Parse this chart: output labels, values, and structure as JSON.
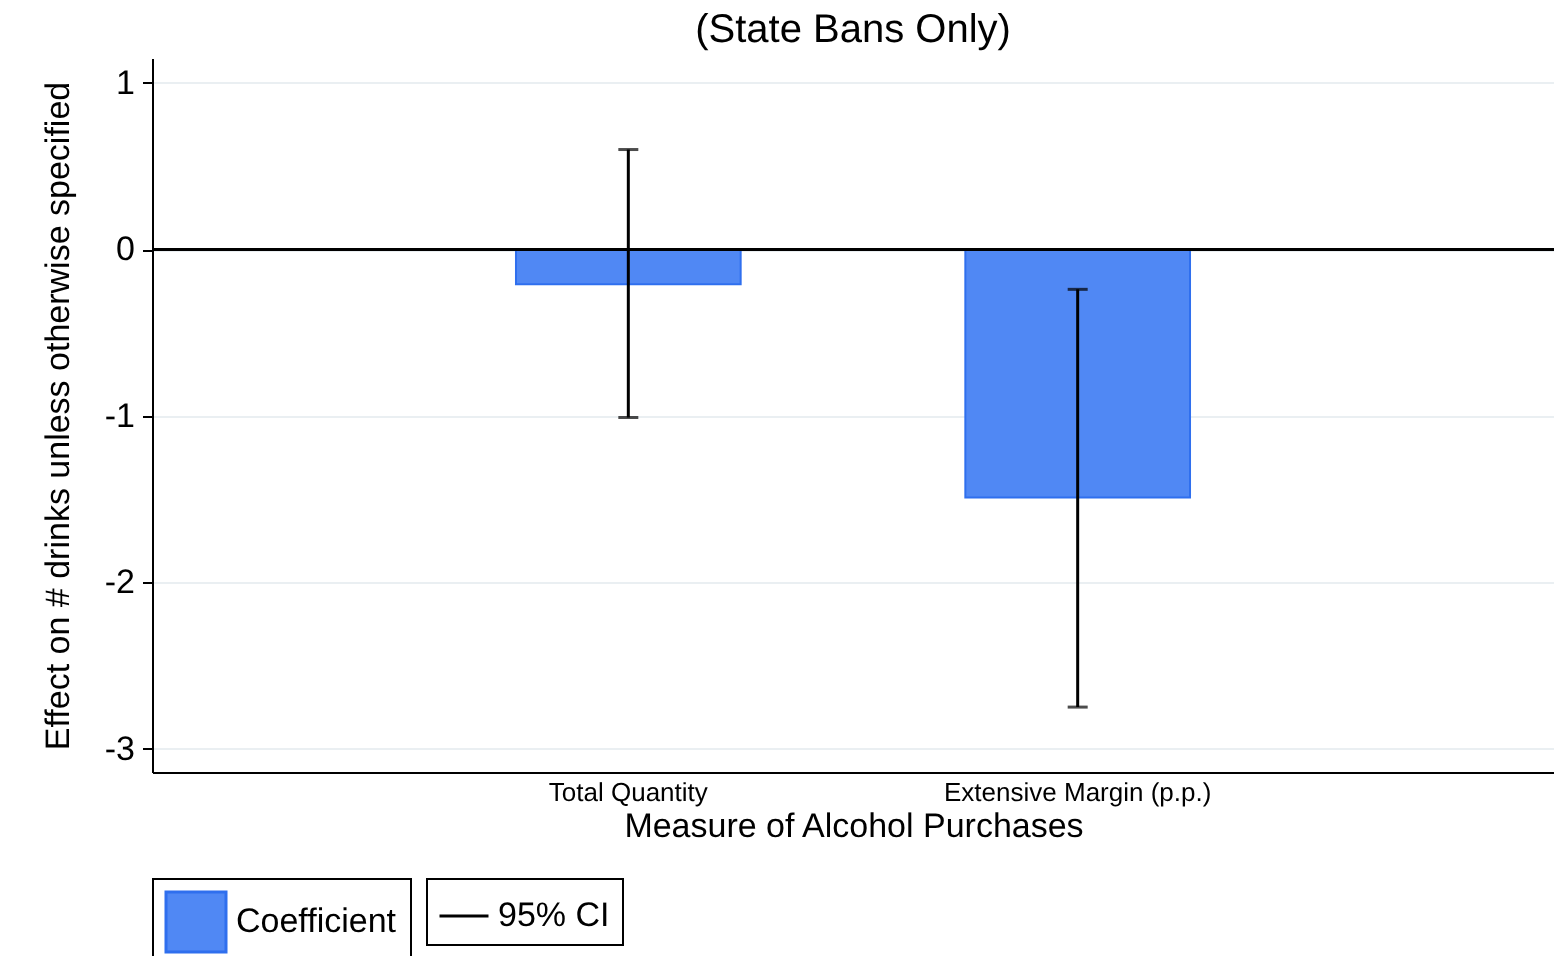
{
  "chart_data": {
    "type": "bar",
    "title": "(State Bans Only)",
    "xlabel": "Measure of Alcohol Purchases",
    "ylabel": "Effect on # drinks unless otherwise specified",
    "categories": [
      "Total Quantity",
      "Extensive Margin (p.p.)"
    ],
    "series": [
      {
        "name": "Coefficient",
        "color": "#5088f4",
        "values": [
          -0.21,
          -1.49
        ],
        "errors": [
          [
            -1.01,
            0.6
          ],
          [
            -2.75,
            -0.24
          ]
        ]
      }
    ],
    "annotations": [
      "95% CI"
    ],
    "ylim": [
      -3.14,
      1.15
    ],
    "yticks": [
      -3,
      -2,
      -1,
      0,
      1
    ],
    "ref_lines": [
      {
        "axis": "y",
        "value": 0,
        "color": "#000000"
      }
    ],
    "grid": "y",
    "legend": "bottom"
  }
}
